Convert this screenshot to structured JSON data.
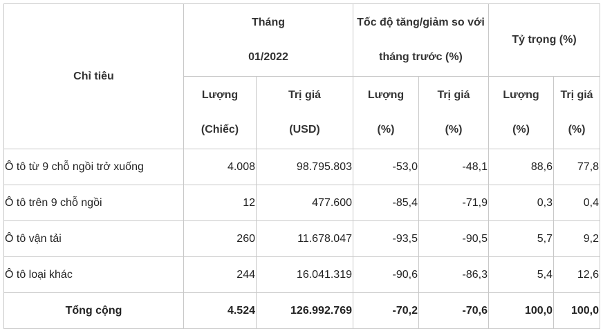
{
  "table": {
    "header": {
      "indicator": "Chỉ tiêu",
      "month": [
        "Tháng",
        "01/2022"
      ],
      "change": [
        "Tốc độ tăng/giảm so với",
        "tháng trước (%)"
      ],
      "share": "Tỷ trọng (%)",
      "subheaders": [
        [
          "Lượng",
          "(Chiếc)"
        ],
        [
          "Trị giá",
          "(USD)"
        ],
        [
          "Lượng",
          "(%)"
        ],
        [
          "Trị giá",
          "(%)"
        ],
        [
          "Lượng",
          "(%)"
        ],
        [
          "Trị giá",
          "(%)"
        ]
      ]
    },
    "rows": [
      [
        "Ô tô từ 9 chỗ ngồi trở xuống",
        "4.008",
        "98.795.803",
        "-53,0",
        "-48,1",
        "88,6",
        "77,8"
      ],
      [
        "Ô tô trên 9 chỗ ngồi",
        "12",
        "477.600",
        "-85,4",
        "-71,9",
        "0,3",
        "0,4"
      ],
      [
        "Ô tô vận tải",
        "260",
        "11.678.047",
        "-93,5",
        "-90,5",
        "5,7",
        "9,2"
      ],
      [
        "Ô tô loại khác",
        "244",
        "16.041.319",
        "-90,6",
        "-86,3",
        "5,4",
        "12,6"
      ]
    ],
    "total": [
      "Tổng cộng",
      "4.524",
      "126.992.769",
      "-70,2",
      "-70,6",
      "100,0",
      "100,0"
    ]
  }
}
